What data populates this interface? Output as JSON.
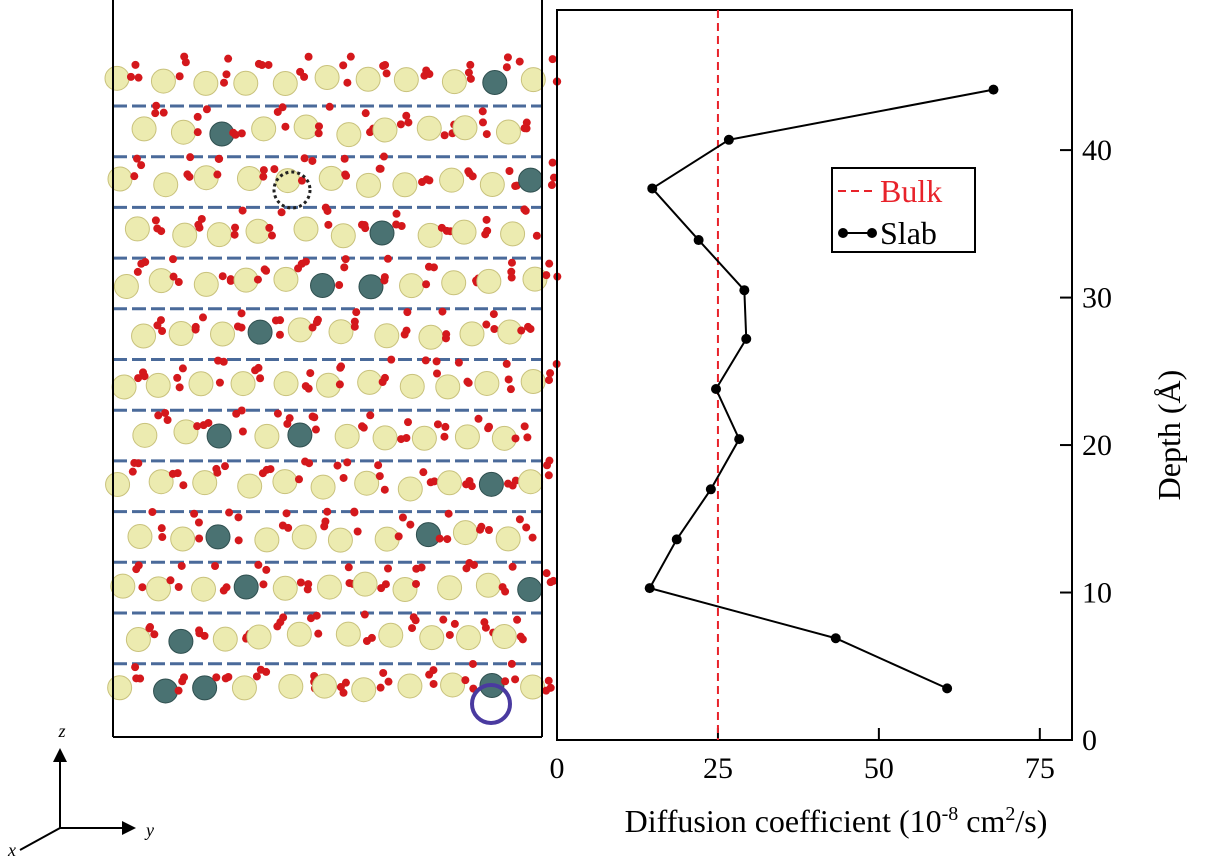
{
  "chart_data": {
    "type": "line",
    "xlabel_parts": [
      "Diffusion coefficient (10",
      "-8",
      " cm",
      "2",
      "/s)"
    ],
    "ylabel": "Depth (Å)",
    "triad": [
      "z",
      "y",
      "x"
    ],
    "xlim": [
      0,
      80
    ],
    "xticks": [
      0,
      25,
      50,
      75
    ],
    "ylim": [
      0,
      49.5
    ],
    "yticks": [
      0,
      10,
      20,
      30,
      40
    ],
    "legend": "upper right",
    "series": [
      {
        "name": "Bulk",
        "color": "#e8222a",
        "x": [
          25
        ]
      },
      {
        "name": "Slab",
        "color": "#000000",
        "x": [
          67.8,
          26.7,
          14.8,
          22.0,
          29.1,
          29.4,
          24.7,
          28.3,
          23.9,
          18.6,
          14.4,
          43.3,
          60.6
        ],
        "y": [
          44.1,
          40.7,
          37.4,
          33.9,
          30.5,
          27.2,
          23.8,
          20.4,
          17.0,
          13.6,
          10.3,
          6.9,
          3.5
        ]
      }
    ]
  }
}
